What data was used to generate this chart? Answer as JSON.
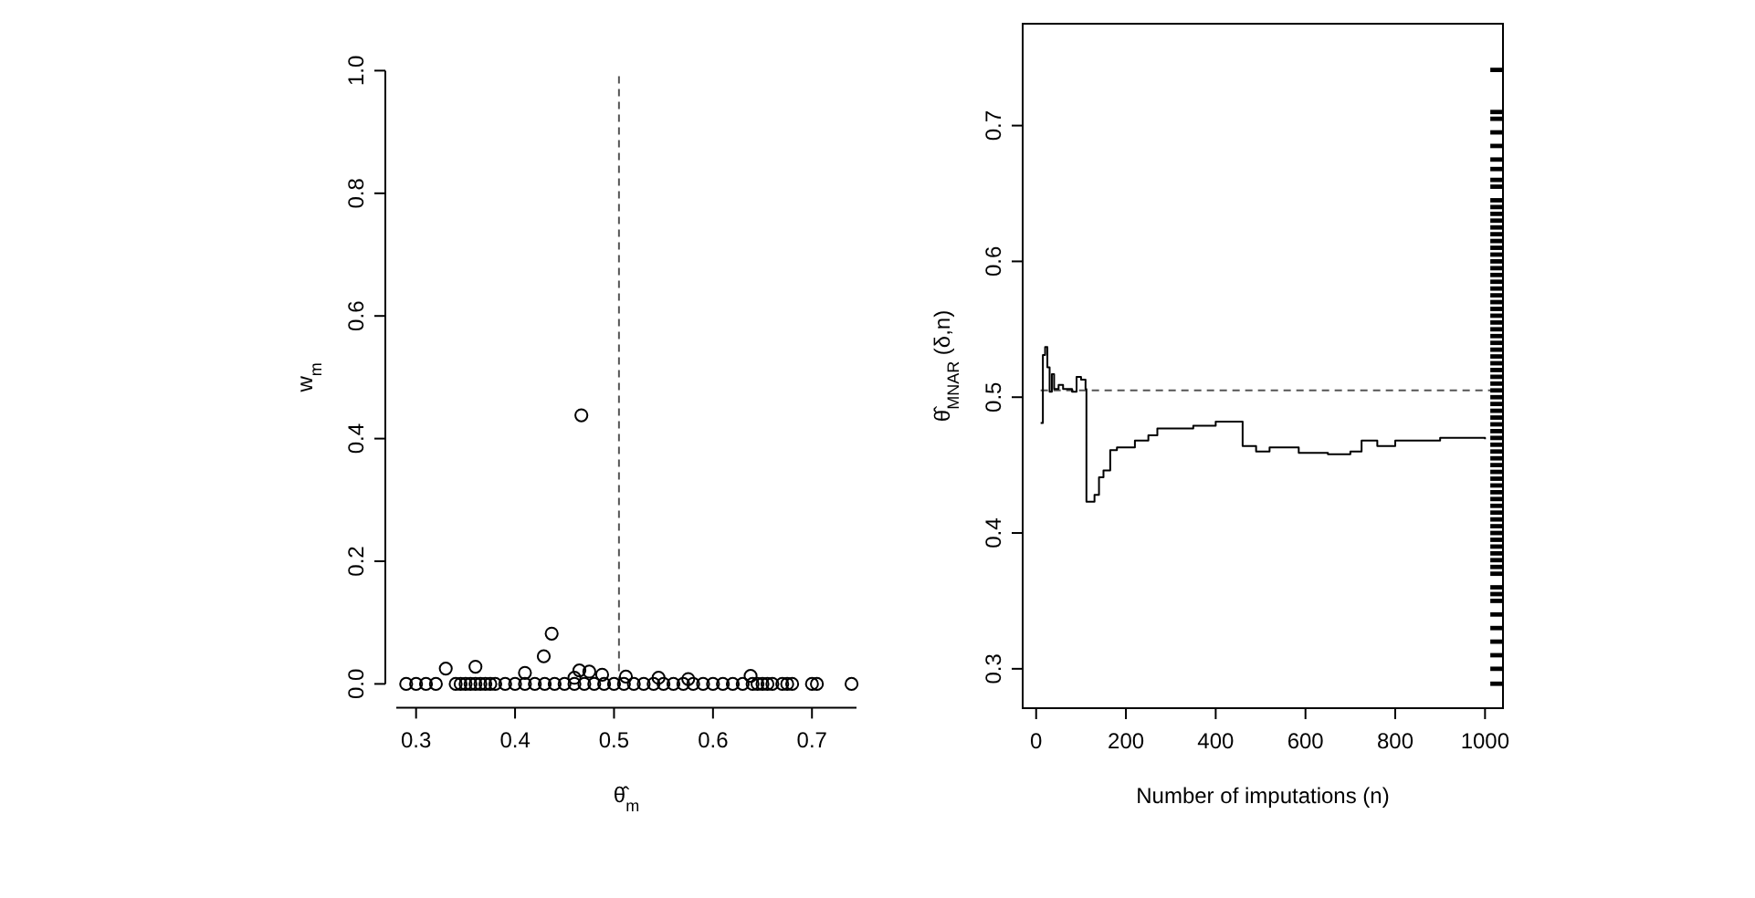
{
  "chart_data": [
    {
      "type": "scatter",
      "xlabel": "θ̂$_{m}$",
      "ylabel": "w$_{m}$",
      "xlim": [
        0.28,
        0.745
      ],
      "ylim": [
        0,
        1
      ],
      "xticks": [
        0.3,
        0.4,
        0.5,
        0.6,
        0.7
      ],
      "yticks": [
        {
          "value": 0,
          "label": "0.0"
        },
        0.2,
        0.4,
        0.6,
        0.8,
        {
          "value": 1,
          "label": "1.0"
        }
      ],
      "marker": "circle",
      "series": [
        {
          "color": "#000000",
          "x": [
            0.29,
            0.3,
            0.31,
            0.32,
            0.34,
            0.345,
            0.35,
            0.355,
            0.36,
            0.365,
            0.37,
            0.375,
            0.38,
            0.39,
            0.4,
            0.41,
            0.42,
            0.43,
            0.44,
            0.45,
            0.46,
            0.47,
            0.48,
            0.49,
            0.5,
            0.51,
            0.52,
            0.53,
            0.54,
            0.55,
            0.56,
            0.57,
            0.58,
            0.59,
            0.6,
            0.61,
            0.62,
            0.63,
            0.64,
            0.645,
            0.65,
            0.655,
            0.66,
            0.67,
            0.675,
            0.68,
            0.7,
            0.705,
            0.74,
            0.467,
            0.437,
            0.429,
            0.33,
            0.36,
            0.41,
            0.465,
            0.475,
            0.488,
            0.512,
            0.545,
            0.575,
            0.638,
            0.46
          ],
          "values": [
            0,
            0,
            0,
            0,
            0,
            0,
            0,
            0,
            0,
            0,
            0,
            0,
            0,
            0,
            0,
            0,
            0,
            0,
            0,
            0,
            0,
            0,
            0,
            0,
            0,
            0,
            0,
            0,
            0,
            0,
            0,
            0,
            0,
            0,
            0,
            0,
            0,
            0,
            0,
            0,
            0,
            0,
            0,
            0,
            0,
            0,
            0,
            0,
            0,
            0.438,
            0.082,
            0.045,
            0.025,
            0.028,
            0.018,
            0.022,
            0.02,
            0.015,
            0.012,
            0.01,
            0.008,
            0.013,
            0.01
          ]
        }
      ],
      "ref_lines": [
        {
          "axis": "x",
          "value": 0.505,
          "line_style": "dashed"
        }
      ]
    },
    {
      "type": "step",
      "xlabel": "Number of imputations (n)",
      "ylabel": "θ̂$_{MNAR}$ (δ,n)",
      "xlim": [
        -30,
        1040
      ],
      "ylim": [
        0.271,
        0.775
      ],
      "xticks": [
        0,
        200,
        400,
        600,
        800,
        1000
      ],
      "yticks": [
        0.3,
        0.4,
        0.5,
        0.6,
        0.7
      ],
      "series": [
        {
          "type": "step",
          "color": "#000000",
          "x": [
            10,
            15,
            20,
            25,
            30,
            35,
            40,
            50,
            60,
            80,
            90,
            100,
            110,
            112,
            130,
            140,
            150,
            165,
            180,
            220,
            250,
            270,
            350,
            400,
            455,
            460,
            490,
            520,
            585,
            650,
            700,
            725,
            760,
            800,
            900,
            1000
          ],
          "values": [
            0.481,
            0.531,
            0.537,
            0.522,
            0.504,
            0.517,
            0.506,
            0.509,
            0.506,
            0.504,
            0.515,
            0.513,
            0.506,
            0.423,
            0.428,
            0.441,
            0.446,
            0.461,
            0.463,
            0.468,
            0.472,
            0.477,
            0.479,
            0.482,
            0.482,
            0.464,
            0.46,
            0.463,
            0.459,
            0.458,
            0.46,
            0.468,
            0.464,
            0.468,
            0.47,
            0.469
          ]
        },
        {
          "type": "scatter",
          "color": "#000000",
          "x": [
            1026,
            1026,
            1026,
            1026,
            1026,
            1026,
            1026,
            1026,
            1026,
            1026,
            1026,
            1026,
            1026,
            1026,
            1026,
            1026,
            1026,
            1026,
            1026,
            1026,
            1026,
            1026,
            1026,
            1026,
            1026,
            1026,
            1026,
            1026,
            1026,
            1026,
            1026,
            1026,
            1026,
            1026,
            1026,
            1026,
            1026,
            1026,
            1026,
            1026,
            1026,
            1026,
            1026,
            1026,
            1026,
            1026,
            1026,
            1026,
            1026,
            1026,
            1026,
            1026,
            1026,
            1026,
            1026,
            1026,
            1026,
            1026,
            1026,
            1026,
            1026,
            1026,
            1026,
            1026,
            1026,
            1026,
            1026,
            1026,
            1026,
            1026,
            1026,
            1026,
            1026,
            1026
          ],
          "values": [
            0.741,
            0.71,
            0.705,
            0.695,
            0.685,
            0.675,
            0.668,
            0.66,
            0.655,
            0.645,
            0.64,
            0.635,
            0.63,
            0.625,
            0.62,
            0.615,
            0.61,
            0.605,
            0.6,
            0.595,
            0.59,
            0.585,
            0.58,
            0.575,
            0.57,
            0.565,
            0.56,
            0.555,
            0.55,
            0.545,
            0.54,
            0.535,
            0.53,
            0.525,
            0.52,
            0.515,
            0.51,
            0.505,
            0.5,
            0.495,
            0.49,
            0.485,
            0.48,
            0.475,
            0.47,
            0.465,
            0.46,
            0.455,
            0.45,
            0.445,
            0.44,
            0.435,
            0.43,
            0.425,
            0.42,
            0.415,
            0.41,
            0.405,
            0.4,
            0.395,
            0.39,
            0.385,
            0.38,
            0.375,
            0.37,
            0.36,
            0.355,
            0.35,
            0.34,
            0.33,
            0.32,
            0.31,
            0.3,
            0.289
          ]
        }
      ],
      "ref_lines": [
        {
          "axis": "y",
          "value": 0.505,
          "line_style": "dashed"
        }
      ]
    }
  ]
}
